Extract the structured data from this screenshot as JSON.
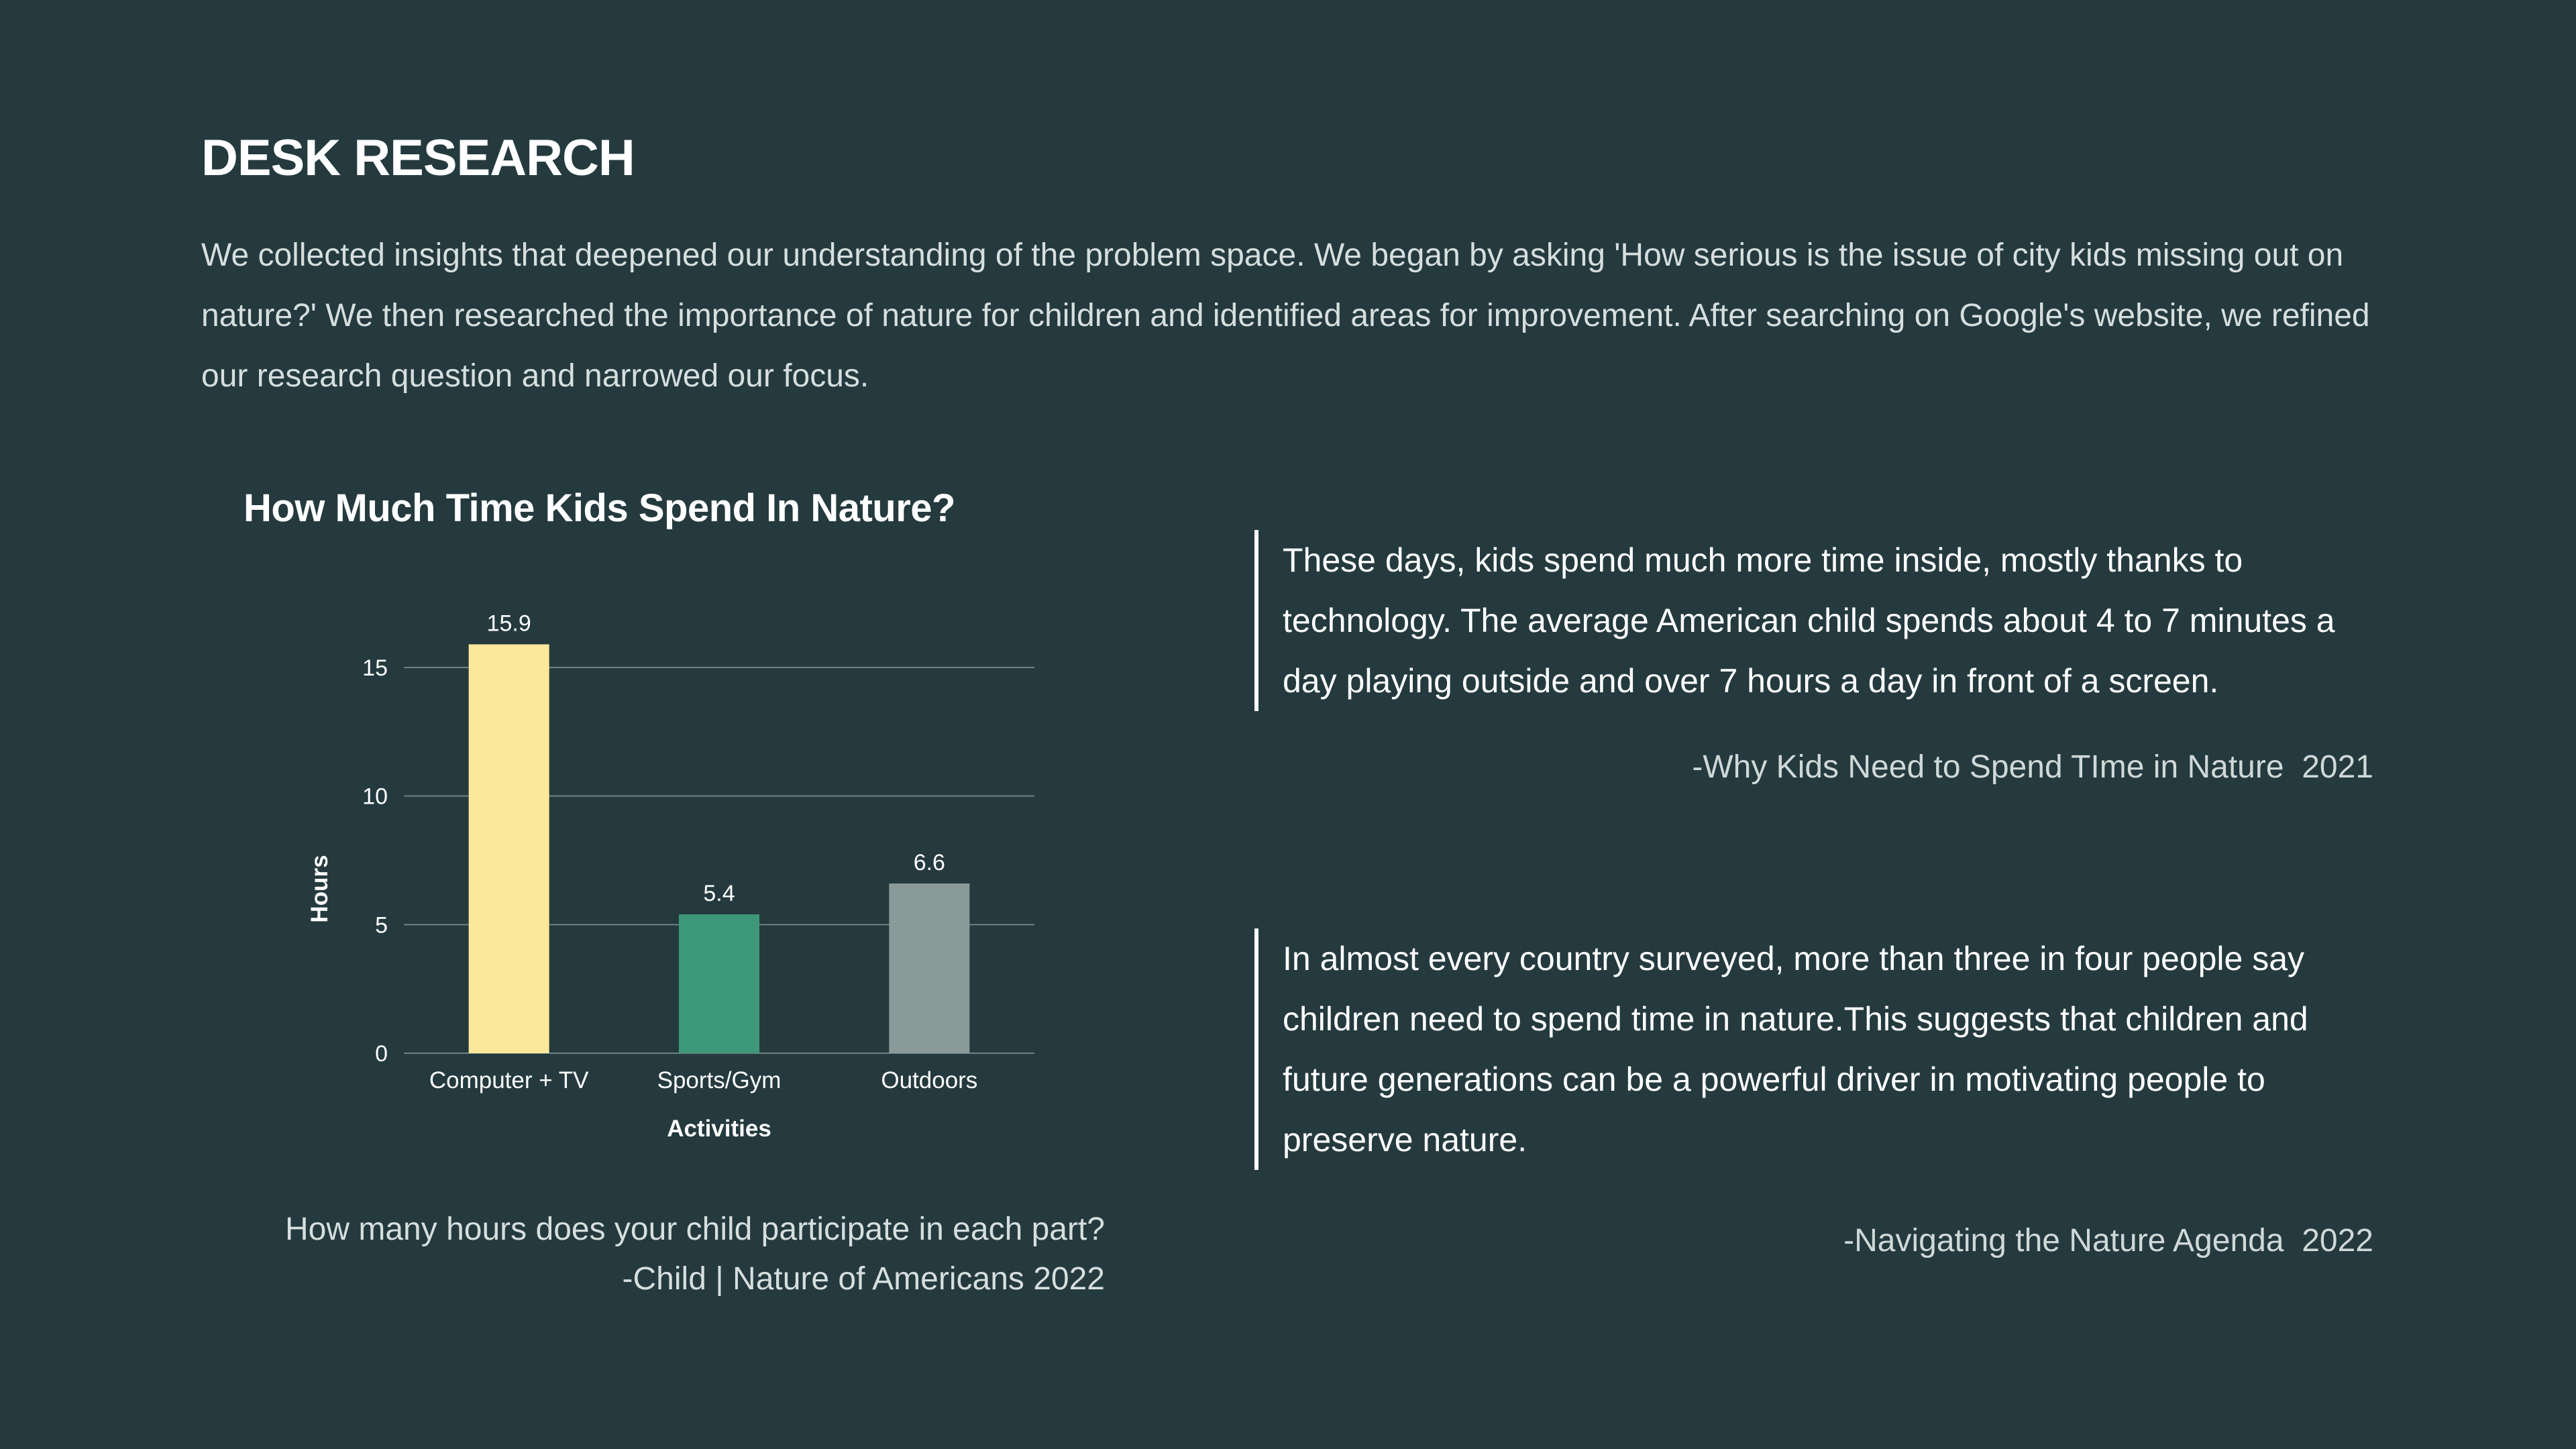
{
  "section": {
    "heading": "DESK RESEARCH",
    "intro": "We collected insights that deepened our understanding of the problem space. We began by asking 'How serious is the issue of city kids missing out on nature?' We then researched the importance of nature for children and identified areas for improvement. After searching on Google's website, we refined our research question and narrowed our focus."
  },
  "chart": {
    "caption_question": "How many hours does your child participate in each part?",
    "caption_source": "-Child | Nature of Americans  2022"
  },
  "chart_data": {
    "type": "bar",
    "title": "How Much Time Kids Spend In Nature?",
    "categories": [
      "Computer + TV",
      "Sports/Gym",
      "Outdoors"
    ],
    "values": [
      15.9,
      5.4,
      6.6
    ],
    "value_labels": [
      "15.9",
      "5.4",
      "6.6"
    ],
    "bar_colors": [
      "#fbe89a",
      "#3c9878",
      "#8a9a99"
    ],
    "xlabel": "Activities",
    "ylabel": "Hours",
    "ylim": [
      0,
      18
    ],
    "yticks": [
      0,
      5,
      10,
      15
    ],
    "grid": true
  },
  "quotes": [
    {
      "text": "These days, kids spend much more time inside, mostly thanks to technology. The average American child spends about 4 to 7 minutes a day playing outside and over 7 hours a day in front of a screen.",
      "source": "-Why Kids Need to Spend TIme in Nature  2021"
    },
    {
      "text": "In almost every country surveyed, more than three in four people say children need to spend time in nature.This suggests that children and future generations can be a powerful driver in motivating people to preserve nature.",
      "source": "-Navigating the Nature Agenda  2022"
    }
  ],
  "colors": {
    "background": "#243a3e",
    "text": "#ffffff",
    "muted_text": "#d7dede",
    "grid": "#6f8284"
  }
}
